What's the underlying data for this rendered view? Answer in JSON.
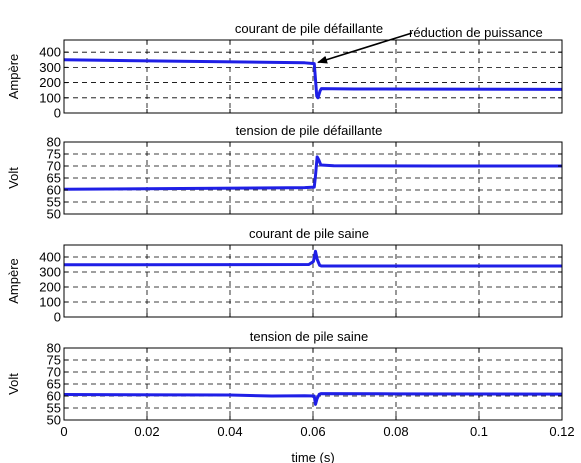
{
  "colors": {
    "trace": "#1f1fe6",
    "grid": "#000000",
    "axes": "#000000",
    "background": "#ffffff"
  },
  "figure": {
    "xlabel": "time (s)"
  },
  "chart_data": [
    {
      "type": "line",
      "title": "courant de pile défaillante",
      "ylabel": "Ampère",
      "xlim": [
        0,
        0.12
      ],
      "ylim": [
        0,
        480
      ],
      "yticks": [
        0,
        100,
        200,
        300,
        400
      ],
      "ytick_labels": [
        "0",
        "100",
        "200",
        "300",
        "400"
      ],
      "grid": true,
      "annotation": {
        "text": "réduction de puissance",
        "x": 0.0605,
        "y": 320
      },
      "series": [
        {
          "points": [
            [
              0,
              350
            ],
            [
              0.058,
              330
            ],
            [
              0.0603,
              325
            ],
            [
              0.0606,
              220
            ],
            [
              0.0609,
              112
            ],
            [
              0.0612,
              100
            ],
            [
              0.0617,
              145
            ],
            [
              0.062,
              160
            ],
            [
              0.07,
              158
            ],
            [
              0.09,
              157
            ],
            [
              0.12,
              155
            ]
          ]
        }
      ]
    },
    {
      "type": "line",
      "title": "tension de pile défaillante",
      "ylabel": "Volt",
      "xlim": [
        0,
        0.12
      ],
      "ylim": [
        50,
        80
      ],
      "yticks": [
        50,
        55,
        60,
        65,
        70,
        75,
        80
      ],
      "ytick_labels": [
        "50",
        "55",
        "60",
        "65",
        "70",
        "75",
        "80"
      ],
      "grid": true,
      "series": [
        {
          "points": [
            [
              0,
              60.3
            ],
            [
              0.058,
              61.0
            ],
            [
              0.0603,
              61.2
            ],
            [
              0.0606,
              66
            ],
            [
              0.061,
              73.8
            ],
            [
              0.0614,
              72.5
            ],
            [
              0.0619,
              70.4
            ],
            [
              0.065,
              70.1
            ],
            [
              0.09,
              70.0
            ],
            [
              0.12,
              70.0
            ]
          ]
        }
      ]
    },
    {
      "type": "line",
      "title": "courant de pile saine",
      "ylabel": "Ampère",
      "xlim": [
        0,
        0.12
      ],
      "ylim": [
        0,
        480
      ],
      "yticks": [
        0,
        100,
        200,
        300,
        400
      ],
      "ytick_labels": [
        "0",
        "100",
        "200",
        "300",
        "400"
      ],
      "grid": true,
      "series": [
        {
          "points": [
            [
              0,
              348
            ],
            [
              0.059,
              350
            ],
            [
              0.0601,
              370
            ],
            [
              0.0606,
              438
            ],
            [
              0.061,
              385
            ],
            [
              0.0616,
              345
            ],
            [
              0.062,
              340
            ],
            [
              0.07,
              340
            ],
            [
              0.09,
              340
            ],
            [
              0.12,
              340
            ]
          ]
        }
      ]
    },
    {
      "type": "line",
      "title": "tension de pile saine",
      "ylabel": "Volt",
      "xlim": [
        0,
        0.12
      ],
      "ylim": [
        50,
        80
      ],
      "yticks": [
        50,
        55,
        60,
        65,
        70,
        75,
        80
      ],
      "ytick_labels": [
        "50",
        "55",
        "60",
        "65",
        "70",
        "75",
        "80"
      ],
      "xticks": [
        0,
        0.02,
        0.04,
        0.06,
        0.08,
        0.1,
        0.12
      ],
      "xtick_labels": [
        "0",
        "0.02",
        "0.04",
        "0.06",
        "0.08",
        "0.1",
        "0.12"
      ],
      "grid": true,
      "series": [
        {
          "points": [
            [
              0,
              60.6
            ],
            [
              0.04,
              60.4
            ],
            [
              0.05,
              60.0
            ],
            [
              0.058,
              60.1
            ],
            [
              0.0603,
              60.0
            ],
            [
              0.0606,
              56.5
            ],
            [
              0.061,
              59.0
            ],
            [
              0.0615,
              60.7
            ],
            [
              0.062,
              61.0
            ],
            [
              0.08,
              60.9
            ],
            [
              0.12,
              60.8
            ]
          ]
        }
      ]
    }
  ]
}
